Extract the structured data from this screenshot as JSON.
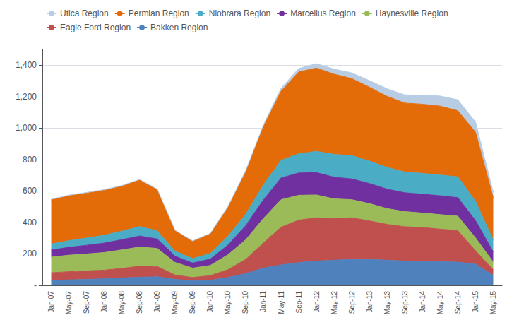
{
  "chart_data": {
    "type": "area",
    "stacked": true,
    "grid": true,
    "legend": "upper left",
    "categories": [
      "Jan-07",
      "May-07",
      "Sep-07",
      "Jan-08",
      "May-08",
      "Sep-08",
      "Jan-09",
      "May-09",
      "Sep-09",
      "Jan-10",
      "May-10",
      "Sep-10",
      "Jan-11",
      "May-11",
      "Sep-11",
      "Jan-12",
      "May-12",
      "Sep-12",
      "Jan-13",
      "May-13",
      "Sep-13",
      "Jan-14",
      "May-14",
      "Sep-14",
      "Jan-15",
      "May-15"
    ],
    "ylim": [
      0,
      1500
    ],
    "yticks": [
      {
        "value": 0,
        "label": "-"
      },
      200,
      400,
      600,
      800,
      {
        "value": 1000,
        "label": "1,000"
      },
      {
        "value": 1200,
        "label": "1,200"
      },
      {
        "value": 1400,
        "label": "1,400"
      }
    ],
    "series": [
      {
        "name": "Bakken Region",
        "color": "#4f81bd",
        "values": [
          30,
          35,
          38,
          42,
          48,
          52,
          55,
          38,
          28,
          32,
          50,
          75,
          110,
          130,
          145,
          155,
          160,
          165,
          165,
          160,
          155,
          150,
          150,
          148,
          135,
          65
        ]
      },
      {
        "name": "Eagle Ford Region",
        "color": "#c0504d",
        "values": [
          50,
          52,
          54,
          55,
          60,
          70,
          65,
          28,
          22,
          30,
          50,
          90,
          160,
          240,
          270,
          275,
          265,
          265,
          245,
          228,
          218,
          218,
          208,
          200,
          85,
          35
        ]
      },
      {
        "name": "Haynesville Region",
        "color": "#9bbb59",
        "values": [
          100,
          105,
          108,
          112,
          118,
          122,
          115,
          80,
          60,
          65,
          95,
          125,
          155,
          175,
          158,
          145,
          125,
          115,
          110,
          100,
          96,
          92,
          92,
          92,
          82,
          48
        ]
      },
      {
        "name": "Marcellus Region",
        "color": "#7030a0",
        "values": [
          45,
          50,
          55,
          60,
          65,
          70,
          60,
          40,
          32,
          40,
          62,
          90,
          118,
          138,
          142,
          142,
          138,
          132,
          128,
          124,
          120,
          120,
          120,
          118,
          110,
          65
        ]
      },
      {
        "name": "Niobrara Region",
        "color": "#4bacc6",
        "values": [
          38,
          42,
          46,
          50,
          54,
          60,
          52,
          32,
          28,
          36,
          55,
          72,
          95,
          112,
          122,
          135,
          145,
          148,
          142,
          138,
          132,
          132,
          132,
          132,
          122,
          75
        ]
      },
      {
        "name": "Permian Region",
        "color": "#e36c09",
        "values": [
          280,
          285,
          285,
          285,
          285,
          295,
          260,
          130,
          110,
          125,
          185,
          270,
          370,
          440,
          520,
          530,
          510,
          490,
          470,
          452,
          438,
          440,
          438,
          420,
          440,
          270
        ]
      },
      {
        "name": "Utica Region",
        "color": "#b8cce4",
        "values": [
          5,
          5,
          5,
          5,
          5,
          5,
          5,
          3,
          3,
          3,
          5,
          8,
          12,
          18,
          22,
          28,
          32,
          36,
          42,
          48,
          52,
          58,
          64,
          70,
          65,
          35
        ]
      }
    ]
  }
}
